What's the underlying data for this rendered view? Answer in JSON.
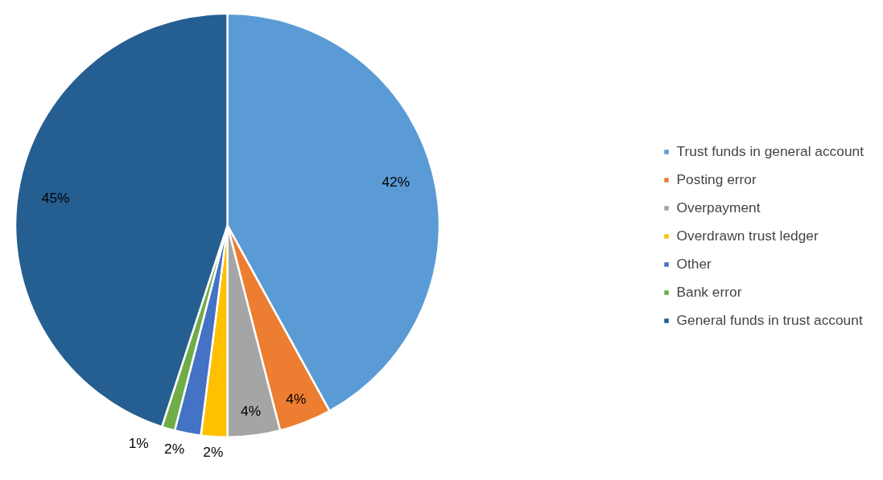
{
  "chart_data": {
    "type": "pie",
    "categories": [
      "Trust funds in general account",
      "Posting error",
      "Overpayment",
      "Overdrawn trust ledger",
      "Other",
      "Bank error",
      "General funds in trust account"
    ],
    "values": [
      42,
      4,
      4,
      2,
      2,
      1,
      45
    ],
    "colors": [
      "#5b9bd5",
      "#ed7d31",
      "#a5a5a5",
      "#ffc000",
      "#4472c4",
      "#70ad47",
      "#255e91"
    ],
    "value_labels": [
      "42%",
      "4%",
      "4%",
      "2%",
      "2%",
      "1%",
      "45%"
    ],
    "legend": "right"
  }
}
